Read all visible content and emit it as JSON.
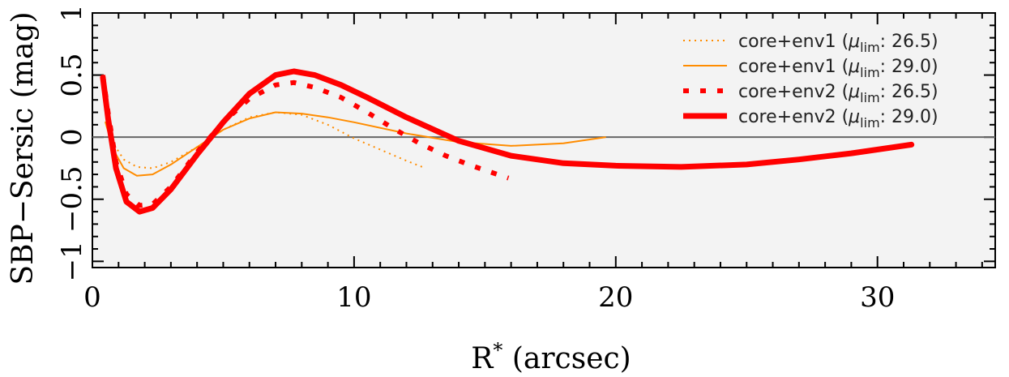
{
  "chart_data": {
    "type": "line",
    "title": "",
    "xlabel": "R",
    "xlabel_sup": "*",
    "xlabel_unit": " (arcsec)",
    "ylabel": "SBP−Sersic (mag)",
    "xlim": [
      0,
      34.5
    ],
    "ylim": [
      -1.05,
      1.0
    ],
    "x_ticks": [
      0,
      10,
      20,
      30
    ],
    "y_ticks": [
      -1,
      -0.5,
      0,
      0.5,
      1
    ],
    "y_tick_labels": [
      "−1",
      "−0.5",
      "0",
      "0.5",
      "1"
    ],
    "zero_line": 0,
    "background": "#f3f3f3",
    "legend_position": "top-right",
    "series": [
      {
        "name": "core+env1",
        "mu_lim": "26.5",
        "color": "#ff8c00",
        "style": "dotted",
        "width": 2,
        "x": [
          0.5,
          0.8,
          1.2,
          1.7,
          2.3,
          3.0,
          4.0,
          5.0,
          6.0,
          7.0,
          8.0,
          9.0,
          10.0,
          11.0,
          12.0,
          12.6
        ],
        "y": [
          0.2,
          -0.05,
          -0.18,
          -0.24,
          -0.25,
          -0.2,
          -0.08,
          0.06,
          0.16,
          0.2,
          0.18,
          0.1,
          -0.01,
          -0.1,
          -0.19,
          -0.24
        ]
      },
      {
        "name": "core+env1",
        "mu_lim": "29.0",
        "color": "#ff8c00",
        "style": "solid",
        "width": 2,
        "x": [
          0.5,
          0.8,
          1.2,
          1.7,
          2.3,
          3.0,
          4.0,
          5.0,
          6.0,
          7.0,
          8.0,
          9.0,
          10.0,
          12.0,
          14.0,
          16.0,
          18.0,
          19.6
        ],
        "y": [
          0.12,
          -0.1,
          -0.25,
          -0.31,
          -0.3,
          -0.22,
          -0.08,
          0.06,
          0.15,
          0.2,
          0.19,
          0.16,
          0.12,
          0.03,
          -0.04,
          -0.07,
          -0.05,
          0.0
        ]
      },
      {
        "name": "core+env2",
        "mu_lim": "26.5",
        "color": "#ff0000",
        "style": "dotted",
        "width": 6,
        "x": [
          0.4,
          0.6,
          0.9,
          1.3,
          1.8,
          2.3,
          3.0,
          4.0,
          5.0,
          6.0,
          7.0,
          7.7,
          8.5,
          9.5,
          10.5,
          11.5,
          12.5,
          13.5,
          14.5,
          15.9
        ],
        "y": [
          0.5,
          0.2,
          -0.2,
          -0.46,
          -0.55,
          -0.54,
          -0.4,
          -0.12,
          0.12,
          0.31,
          0.42,
          0.44,
          0.4,
          0.32,
          0.2,
          0.07,
          -0.05,
          -0.15,
          -0.23,
          -0.33
        ]
      },
      {
        "name": "core+env2",
        "mu_lim": "29.0",
        "color": "#ff0000",
        "style": "solid",
        "width": 7,
        "x": [
          0.4,
          0.6,
          0.9,
          1.3,
          1.8,
          2.3,
          3.0,
          4.0,
          5.0,
          6.0,
          7.0,
          7.7,
          8.5,
          9.5,
          10.5,
          12.0,
          14.0,
          16.0,
          18.0,
          20.0,
          22.5,
          25.0,
          27.0,
          29.0,
          31.3
        ],
        "y": [
          0.48,
          0.15,
          -0.25,
          -0.52,
          -0.6,
          -0.57,
          -0.42,
          -0.14,
          0.12,
          0.35,
          0.5,
          0.53,
          0.5,
          0.42,
          0.32,
          0.16,
          -0.03,
          -0.15,
          -0.21,
          -0.23,
          -0.24,
          -0.22,
          -0.18,
          -0.13,
          -0.06
        ]
      }
    ]
  }
}
